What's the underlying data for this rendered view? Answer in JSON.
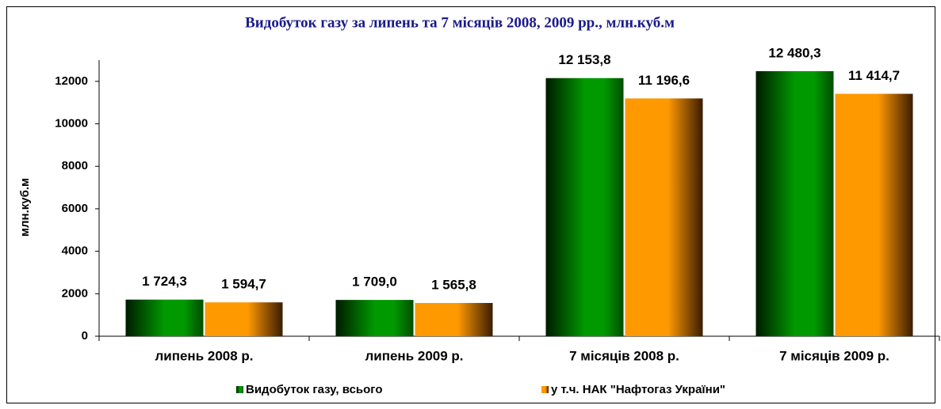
{
  "chart_data": {
    "type": "bar",
    "title": "Видобуток газу за липень та 7 місяців 2008, 2009 рр.,  млн.куб.м",
    "y_label": "млн.куб.м",
    "categories": [
      "липень 2008 р.",
      "липень 2009 р.",
      "7 місяців 2008 р.",
      "7 місяців 2009 р."
    ],
    "series": [
      {
        "name": "Видобуток газу, всього",
        "color": "#009900",
        "values": [
          1724.3,
          1709.0,
          12153.8,
          12480.3
        ],
        "value_labels": [
          "1 724,3",
          "1 709,0",
          "12 153,8",
          "12 480,3"
        ]
      },
      {
        "name": "у т.ч. НАК \"Нафтогаз України\"",
        "color": "#ff9900",
        "values": [
          1594.7,
          1565.8,
          11196.6,
          11414.7
        ],
        "value_labels": [
          "1 594,7",
          "1 565,8",
          "11 196,6",
          "11 414,7"
        ]
      }
    ],
    "ylim": [
      0,
      13000
    ],
    "yticks": [
      0,
      2000,
      4000,
      6000,
      8000,
      10000,
      12000
    ],
    "grid": false,
    "legend": "bottom"
  }
}
